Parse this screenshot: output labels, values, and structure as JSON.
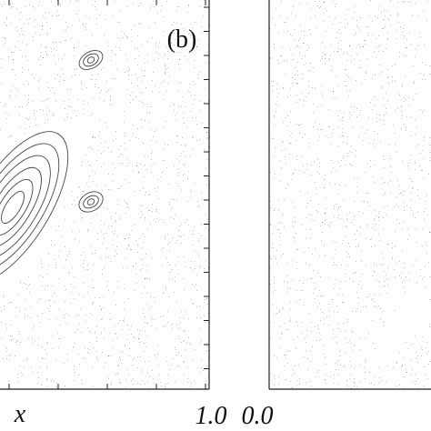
{
  "figure": {
    "panels": [
      {
        "label": "(b)",
        "xlabel": "x",
        "xtick_right": "1.0"
      },
      {
        "xtick_left": "0.0"
      }
    ]
  }
}
